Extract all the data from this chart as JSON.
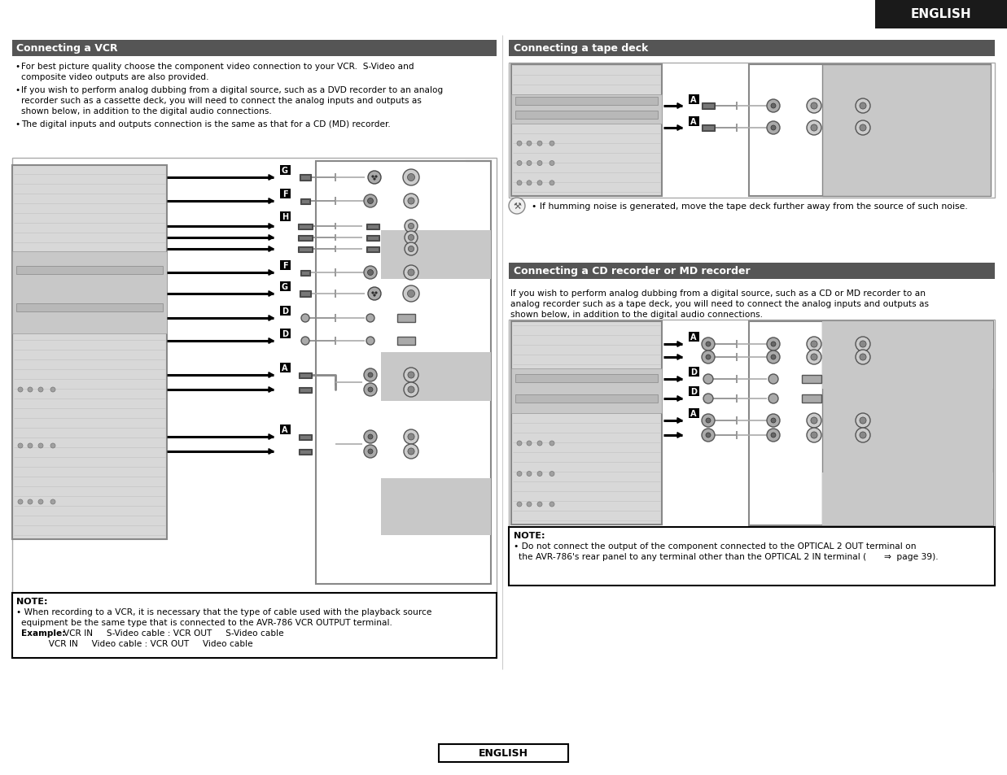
{
  "page_bg": "#ffffff",
  "header_bg": "#1a1a1a",
  "header_text": "ENGLISH",
  "header_text_color": "#ffffff",
  "section_header_bg": "#555555",
  "section_header_text_color": "#ffffff",
  "section1_title": "Connecting a VCR",
  "section2_title": "Connecting a tape deck",
  "section3_title": "Connecting a CD recorder or MD recorder",
  "footer_text": "ENGLISH",
  "vcr_bullet1": "For best picture quality choose the component video connection to your VCR. S-Video and composite video outputs are also provided.",
  "vcr_bullet2": "If you wish to perform analog dubbing from a digital source, such as a DVD recorder to an analog recorder such as a cassette deck, you will need to connect the analog inputs and outputs as shown below, in addition to the digital audio connections.",
  "vcr_bullet3": "The digital inputs and outputs connection is the same as that for a CD (MD) recorder.",
  "tape_note": "If humming noise is generated, move the tape deck further away from the source of such noise.",
  "cd_text1": "If you wish to perform analog dubbing from a digital source, such as a CD or MD recorder to an",
  "cd_text2": "analog recorder such as a tape deck, you will need to connect the analog inputs and outputs as",
  "cd_text3": "shown below, in addition to the digital audio connections.",
  "vcr_note_line1": "When recording to a VCR, it is necessary that the type of cable used with the playback source",
  "vcr_note_line2": "equipment be the same type that is connected to the AVR-786 VCR OUTPUT terminal.",
  "vcr_note_line3a": "Example:",
  "vcr_note_line3b": "VCR IN     S-Video cable : VCR OUT     S-Video cable",
  "vcr_note_line4": "          VCR IN     Video cable : VCR OUT     Video cable",
  "cd_note_line1": "Do not connect the output of the component connected to the OPTICAL 2 OUT terminal on",
  "cd_note_line2": "the AVR-786's rear panel to any terminal other than the OPTICAL 2 IN terminal (",
  "cd_note_line2b": " page 39).",
  "lc": "#000000",
  "gray_box": "#cccccc",
  "dark_gray": "#888888",
  "light_gray": "#e8e8e8",
  "mid_gray": "#c0c0c0",
  "device_bg": "#e4e4e4",
  "device_border": "#888888"
}
